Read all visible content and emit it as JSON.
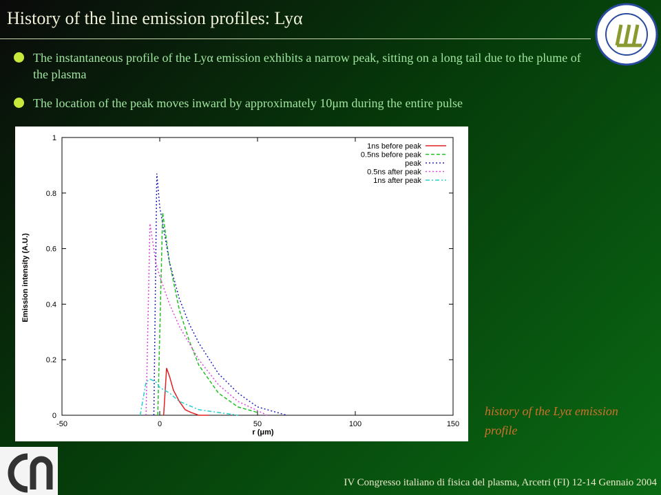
{
  "slide": {
    "title": "History of the line emission profiles: Lyα",
    "bullets": [
      "The instantaneous profile of the Lyα emission exhibits a narrow peak, sitting on a long tail due to the plume of the plasma",
      "The location of the peak moves inward by approximately 10μm during the entire pulse"
    ],
    "caption": "history of the Lyα emission profile",
    "footer": "IV Congresso italiano di fisica del plasma, Arcetri (FI) 12-14 Gennaio 2004"
  },
  "chart_data": {
    "type": "line",
    "x_label": "r (μm)",
    "y_label": "Emission intensity (A.U.)",
    "xlim": [
      -50,
      150
    ],
    "xticks": [
      -50,
      0,
      50,
      100,
      150
    ],
    "ylim": [
      0,
      1
    ],
    "yticks": [
      0,
      0.2,
      0.4,
      0.6,
      0.8,
      1
    ],
    "legend": "upper right",
    "series": [
      {
        "name": "1ns before peak",
        "color": "#e02020",
        "style": "solid",
        "x": [
          2,
          3.5,
          5,
          7,
          10,
          13,
          16,
          20,
          25
        ],
        "values": [
          0,
          0.17,
          0.14,
          0.09,
          0.05,
          0.02,
          0.01,
          0,
          0
        ]
      },
      {
        "name": "0.5ns before peak",
        "color": "#20c020",
        "style": "dashed",
        "x": [
          -1,
          1.5,
          5,
          10,
          15,
          20,
          30,
          40,
          50
        ],
        "values": [
          0,
          0.73,
          0.55,
          0.38,
          0.27,
          0.18,
          0.08,
          0.03,
          0.01
        ]
      },
      {
        "name": "peak",
        "color": "#2020c0",
        "style": "dotted",
        "x": [
          -3,
          -1.5,
          0,
          5,
          10,
          15,
          20,
          30,
          40,
          50,
          65
        ],
        "values": [
          0,
          0.87,
          0.75,
          0.55,
          0.42,
          0.33,
          0.26,
          0.15,
          0.08,
          0.03,
          0
        ]
      },
      {
        "name": "0.5ns after peak",
        "color": "#e040e0",
        "style": "dotted",
        "x": [
          -7,
          -5,
          -2,
          0,
          5,
          10,
          15,
          20,
          30,
          40,
          55
        ],
        "values": [
          0,
          0.69,
          0.55,
          0.5,
          0.4,
          0.32,
          0.26,
          0.2,
          0.11,
          0.05,
          0
        ]
      },
      {
        "name": "1ns after peak",
        "color": "#20d0d0",
        "style": "dashdot",
        "x": [
          -10,
          -7,
          -5,
          -2,
          0,
          5,
          10,
          20,
          30,
          40
        ],
        "values": [
          0,
          0.12,
          0.13,
          0.12,
          0.1,
          0.08,
          0.05,
          0.02,
          0.01,
          0
        ]
      }
    ]
  }
}
